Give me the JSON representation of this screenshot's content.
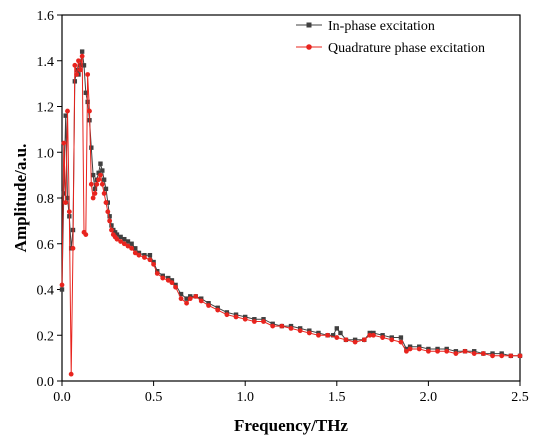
{
  "chart_data": {
    "type": "line",
    "title": "",
    "xlabel": "Frequency/THz",
    "ylabel": "Amplitude/a.u.",
    "xlim": [
      0,
      2.5
    ],
    "ylim": [
      0,
      1.6
    ],
    "x_ticks": [
      "0.0",
      "0.5",
      "1.0",
      "1.5",
      "2.0",
      "2.5"
    ],
    "y_ticks": [
      "0.0",
      "0.2",
      "0.4",
      "0.6",
      "0.8",
      "1.0",
      "1.2",
      "1.4",
      "1.6"
    ],
    "grid": false,
    "legend_position": "top-right",
    "series": [
      {
        "name": "In-phase excitation",
        "color": "#404040",
        "marker": "square",
        "x": [
          0.0,
          0.01,
          0.02,
          0.03,
          0.04,
          0.05,
          0.06,
          0.07,
          0.08,
          0.09,
          0.1,
          0.11,
          0.12,
          0.13,
          0.14,
          0.15,
          0.16,
          0.17,
          0.18,
          0.19,
          0.2,
          0.21,
          0.22,
          0.23,
          0.24,
          0.25,
          0.26,
          0.27,
          0.28,
          0.29,
          0.3,
          0.32,
          0.34,
          0.36,
          0.38,
          0.4,
          0.42,
          0.45,
          0.48,
          0.5,
          0.52,
          0.55,
          0.58,
          0.6,
          0.62,
          0.65,
          0.68,
          0.7,
          0.73,
          0.76,
          0.8,
          0.85,
          0.9,
          0.95,
          1.0,
          1.05,
          1.1,
          1.15,
          1.2,
          1.25,
          1.3,
          1.35,
          1.4,
          1.45,
          1.48,
          1.5,
          1.52,
          1.55,
          1.6,
          1.65,
          1.68,
          1.7,
          1.75,
          1.8,
          1.85,
          1.88,
          1.9,
          1.95,
          2.0,
          2.05,
          2.1,
          2.15,
          2.2,
          2.25,
          2.3,
          2.35,
          2.4,
          2.45,
          2.5
        ],
        "y": [
          0.4,
          0.82,
          1.16,
          0.8,
          0.72,
          0.58,
          0.66,
          1.31,
          1.36,
          1.34,
          1.38,
          1.44,
          1.38,
          1.26,
          1.22,
          1.14,
          1.02,
          0.9,
          0.84,
          0.88,
          0.91,
          0.95,
          0.92,
          0.88,
          0.84,
          0.78,
          0.72,
          0.68,
          0.66,
          0.65,
          0.64,
          0.63,
          0.62,
          0.61,
          0.6,
          0.58,
          0.56,
          0.55,
          0.55,
          0.52,
          0.48,
          0.46,
          0.45,
          0.44,
          0.42,
          0.38,
          0.36,
          0.37,
          0.37,
          0.36,
          0.34,
          0.32,
          0.3,
          0.29,
          0.28,
          0.27,
          0.27,
          0.25,
          0.24,
          0.24,
          0.23,
          0.22,
          0.21,
          0.2,
          0.2,
          0.23,
          0.21,
          0.18,
          0.18,
          0.18,
          0.21,
          0.21,
          0.2,
          0.19,
          0.19,
          0.14,
          0.15,
          0.15,
          0.14,
          0.14,
          0.14,
          0.13,
          0.13,
          0.13,
          0.12,
          0.12,
          0.12,
          0.11,
          0.11
        ]
      },
      {
        "name": "Quadrature phase excitation",
        "color": "#e8241e",
        "marker": "circle",
        "x": [
          0.0,
          0.01,
          0.02,
          0.03,
          0.04,
          0.05,
          0.06,
          0.07,
          0.08,
          0.09,
          0.1,
          0.11,
          0.12,
          0.13,
          0.14,
          0.15,
          0.16,
          0.17,
          0.18,
          0.19,
          0.2,
          0.21,
          0.22,
          0.23,
          0.24,
          0.25,
          0.26,
          0.27,
          0.28,
          0.29,
          0.3,
          0.32,
          0.34,
          0.36,
          0.38,
          0.4,
          0.42,
          0.45,
          0.48,
          0.5,
          0.52,
          0.55,
          0.58,
          0.6,
          0.62,
          0.65,
          0.68,
          0.7,
          0.73,
          0.76,
          0.8,
          0.85,
          0.9,
          0.95,
          1.0,
          1.05,
          1.1,
          1.15,
          1.2,
          1.25,
          1.3,
          1.35,
          1.4,
          1.45,
          1.5,
          1.55,
          1.6,
          1.65,
          1.68,
          1.7,
          1.75,
          1.8,
          1.85,
          1.88,
          1.9,
          1.95,
          2.0,
          2.05,
          2.1,
          2.15,
          2.2,
          2.25,
          2.3,
          2.35,
          2.4,
          2.45,
          2.5
        ],
        "y": [
          0.42,
          1.04,
          0.78,
          1.18,
          0.74,
          0.03,
          0.58,
          1.38,
          1.34,
          1.4,
          1.36,
          1.42,
          0.65,
          0.64,
          1.34,
          1.18,
          0.86,
          0.8,
          0.82,
          0.86,
          0.88,
          0.9,
          0.86,
          0.82,
          0.78,
          0.74,
          0.7,
          0.66,
          0.64,
          0.63,
          0.62,
          0.61,
          0.6,
          0.59,
          0.58,
          0.56,
          0.55,
          0.54,
          0.53,
          0.51,
          0.47,
          0.45,
          0.44,
          0.43,
          0.41,
          0.36,
          0.34,
          0.36,
          0.37,
          0.35,
          0.33,
          0.31,
          0.29,
          0.28,
          0.27,
          0.26,
          0.26,
          0.24,
          0.24,
          0.23,
          0.22,
          0.21,
          0.2,
          0.2,
          0.19,
          0.18,
          0.17,
          0.18,
          0.2,
          0.2,
          0.19,
          0.18,
          0.17,
          0.13,
          0.14,
          0.14,
          0.13,
          0.13,
          0.13,
          0.12,
          0.13,
          0.12,
          0.12,
          0.11,
          0.11,
          0.11,
          0.11
        ]
      }
    ]
  }
}
